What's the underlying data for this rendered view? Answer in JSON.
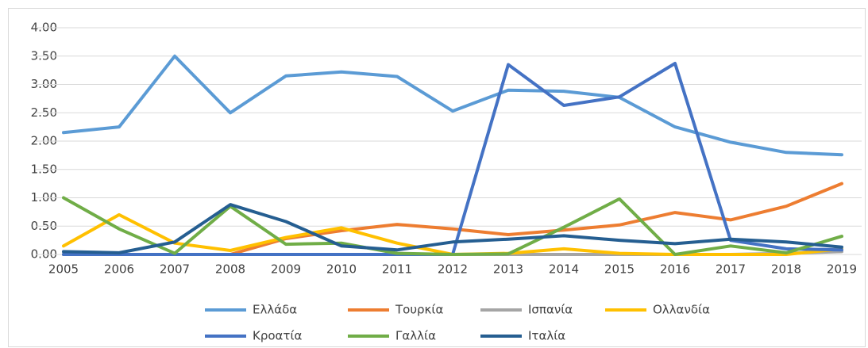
{
  "chart_data": {
    "type": "line",
    "categories": [
      "2005",
      "2006",
      "2007",
      "2008",
      "2009",
      "2010",
      "2011",
      "2012",
      "2013",
      "2014",
      "2015",
      "2016",
      "2017",
      "2018",
      "2019"
    ],
    "ylim": [
      0,
      4
    ],
    "yticks": [
      {
        "value": 0,
        "label": "0.00"
      },
      {
        "value": 0.5,
        "label": "0.50"
      },
      {
        "value": 1,
        "label": "1.00"
      },
      {
        "value": 1.5,
        "label": "1.50"
      },
      {
        "value": 2,
        "label": "2.00"
      },
      {
        "value": 2.5,
        "label": "2.50"
      },
      {
        "value": 3,
        "label": "3.00"
      },
      {
        "value": 3.5,
        "label": "3.50"
      },
      {
        "value": 4,
        "label": "4.00"
      }
    ],
    "grid": true,
    "legend": "bottom",
    "series": [
      {
        "name": "Ελλάδα",
        "color": "#5b9bd5",
        "values": [
          2.15,
          2.25,
          3.5,
          2.5,
          3.15,
          3.22,
          3.14,
          2.53,
          2.9,
          2.88,
          2.77,
          2.25,
          1.98,
          1.8,
          1.76
        ]
      },
      {
        "name": "Τουρκία",
        "color": "#ed7d31",
        "values": [
          0,
          0,
          0,
          0,
          0.28,
          0.42,
          0.53,
          0.45,
          0.35,
          0.43,
          0.52,
          0.74,
          0.61,
          0.85,
          1.25
        ]
      },
      {
        "name": "Ισπανία",
        "color": "#a5a5a5",
        "values": [
          0,
          0,
          0,
          0,
          0,
          0,
          0,
          0,
          0,
          0,
          0,
          0,
          0,
          0.02,
          0.05
        ]
      },
      {
        "name": "Ολλανδία",
        "color": "#ffc000",
        "values": [
          0.15,
          0.7,
          0.2,
          0.07,
          0.3,
          0.47,
          0.2,
          0,
          0.02,
          0.1,
          0.02,
          0,
          0,
          0,
          0.1
        ]
      },
      {
        "name": "Κροατία",
        "color": "#4472c4",
        "values": [
          0,
          0,
          0,
          0,
          0,
          0,
          0,
          0,
          3.35,
          2.63,
          2.78,
          3.37,
          0.25,
          0.1,
          0.08
        ]
      },
      {
        "name": "Γαλλία",
        "color": "#70ad47",
        "values": [
          1.0,
          0.45,
          0.02,
          0.85,
          0.18,
          0.2,
          0.02,
          0,
          0.01,
          0.48,
          0.98,
          0,
          0.15,
          0.03,
          0.32
        ]
      },
      {
        "name": "Ιταλία",
        "color": "#255e91",
        "values": [
          0.05,
          0.03,
          0.22,
          0.88,
          0.58,
          0.15,
          0.08,
          0.22,
          0.27,
          0.33,
          0.25,
          0.19,
          0.27,
          0.22,
          0.13
        ]
      }
    ]
  }
}
